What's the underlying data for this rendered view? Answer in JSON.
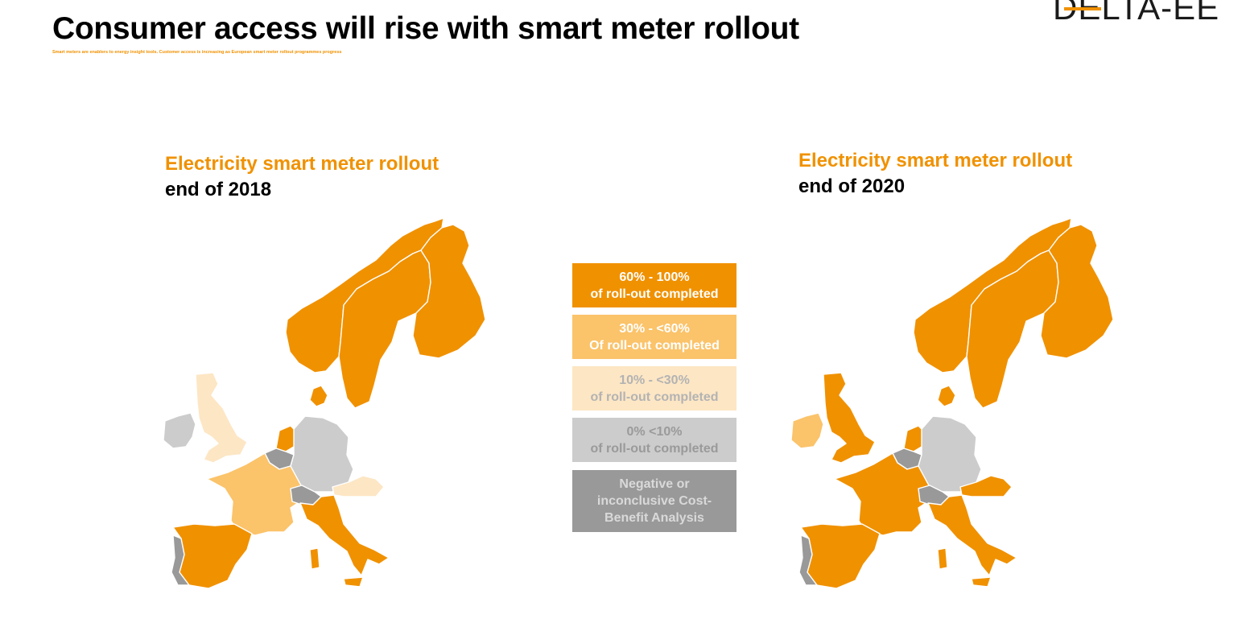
{
  "header": {
    "title": "Consumer access will rise with smart meter rollout",
    "subtitle": "Smart meters are enablers to energy insight tools. Customer access is increasing as European smart meter rollout programmes progress",
    "logo_text": "DELTA-EE"
  },
  "colors": {
    "accent": "#f09100",
    "band_60_100": "#f09100",
    "band_30_60": "#fbc36a",
    "band_10_30": "#fde6c4",
    "band_0_10": "#cccccc",
    "negative_cba": "#999999"
  },
  "maps": [
    {
      "heading": "Electricity smart meter rollout",
      "subheading": "end of 2018",
      "countries": {
        "norway": "band_60_100",
        "sweden": "band_60_100",
        "finland": "band_60_100",
        "denmark": "band_60_100",
        "netherlands": "band_60_100",
        "italy": "band_60_100",
        "spain": "band_60_100",
        "uk": "band_10_30",
        "austria": "band_10_30",
        "france": "band_30_60",
        "germany": "band_0_10",
        "ireland": "band_0_10",
        "belgium": "negative_cba",
        "switzerland": "negative_cba",
        "portugal": "negative_cba"
      }
    },
    {
      "heading": "Electricity smart meter rollout",
      "subheading": "end of 2020",
      "countries": {
        "norway": "band_60_100",
        "sweden": "band_60_100",
        "finland": "band_60_100",
        "denmark": "band_60_100",
        "netherlands": "band_60_100",
        "italy": "band_60_100",
        "spain": "band_60_100",
        "uk": "band_60_100",
        "austria": "band_60_100",
        "france": "band_60_100",
        "ireland": "band_30_60",
        "germany": "band_0_10",
        "belgium": "negative_cba",
        "switzerland": "negative_cba",
        "portugal": "negative_cba"
      }
    }
  ],
  "legend": [
    {
      "band": "band_60_100",
      "line1": "60% - 100%",
      "line2": "of roll-out completed",
      "text_color": "#ffffff"
    },
    {
      "band": "band_30_60",
      "line1": "30% - <60%",
      "line2": "Of roll-out completed",
      "text_color": "#ffffff"
    },
    {
      "band": "band_10_30",
      "line1": "10% - <30%",
      "line2": "of roll-out completed",
      "text_color": "#b3b3b3"
    },
    {
      "band": "band_0_10",
      "line1": "0% <10%",
      "line2": "of roll-out completed",
      "text_color": "#9a9a9a"
    },
    {
      "band": "negative_cba",
      "line1": "Negative or",
      "line2": "inconclusive Cost-",
      "line3": "Benefit Analysis",
      "text_color": "#d9d9d9"
    }
  ]
}
